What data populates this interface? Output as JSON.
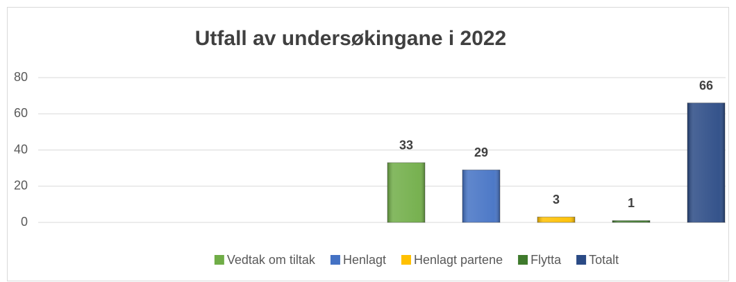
{
  "chart_data": {
    "type": "bar",
    "title": "Utfall av undersøkingane i 2022",
    "categories": [
      null
    ],
    "series": [
      {
        "name": "Vedtak om tiltak",
        "color": "#70ad47",
        "values": [
          33
        ]
      },
      {
        "name": "Henlagt",
        "color": "#4472c4",
        "values": [
          29
        ]
      },
      {
        "name": "Henlagt partene",
        "color": "#ffc000",
        "values": [
          3
        ]
      },
      {
        "name": "Flytta",
        "color": "#3f7a2c",
        "values": [
          1
        ]
      },
      {
        "name": "Totalt",
        "color": "#2a4a85",
        "values": [
          66
        ]
      }
    ],
    "ylim": [
      0,
      80
    ],
    "yticks": [
      0,
      20,
      40,
      60,
      80
    ],
    "grid": true,
    "legend": "bottom"
  }
}
